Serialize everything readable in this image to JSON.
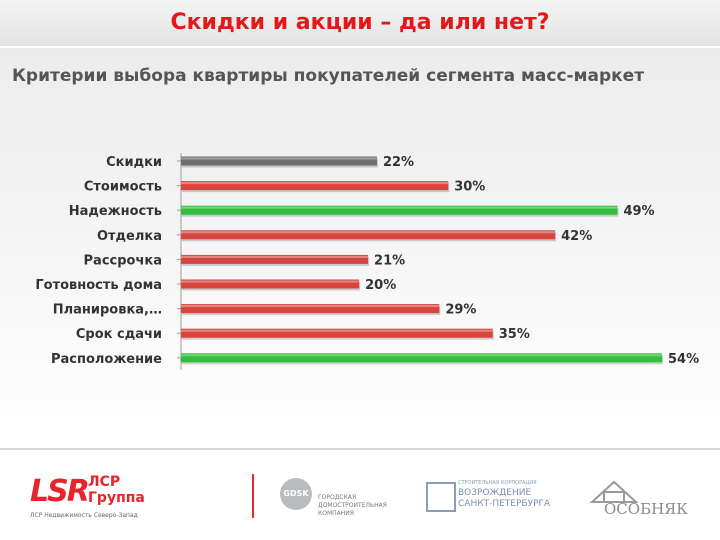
{
  "header": {
    "title": "Скидки и акции – да или нет?"
  },
  "chart_data": {
    "type": "bar",
    "orientation": "horizontal",
    "title": "Критерии выбора квартиры покупателей сегмента масс-маркет",
    "categories": [
      "Скидки",
      "Стоимость",
      "Надежность",
      "Отделка",
      "Рассрочка",
      "Готовность дома",
      "Планировка,…",
      "Срок сдачи",
      "Расположение"
    ],
    "values": [
      22,
      30,
      49,
      42,
      21,
      20,
      29,
      35,
      54
    ],
    "value_suffix": "%",
    "bar_colors": [
      "#6e6e6e",
      "#d8453f",
      "#2fbf3c",
      "#d8453f",
      "#d8453f",
      "#d8453f",
      "#d8453f",
      "#d8453f",
      "#2fbf3c"
    ],
    "xlim": [
      0,
      54
    ],
    "grid": false,
    "legend": "none"
  },
  "footer": {
    "lsr_mark": "LSR",
    "lsr_name": "ЛСР Группа",
    "lsr_sub": "ЛСР Недвижимость Северо-Запад",
    "gdsk_mark": "GDSK",
    "gdsk_text": "ГОРОДСКАЯ ДОМОСТРОИТЕЛЬНАЯ КОМПАНИЯ",
    "vozr_caption": "СТРОИТЕЛЬНАЯ КОРПОРАЦИЯ",
    "vozr_text": "ВОЗРОЖДЕНИЕ САНКТ-ПЕТЕРБУРГА",
    "osob_text": "ОСОБНЯК"
  }
}
